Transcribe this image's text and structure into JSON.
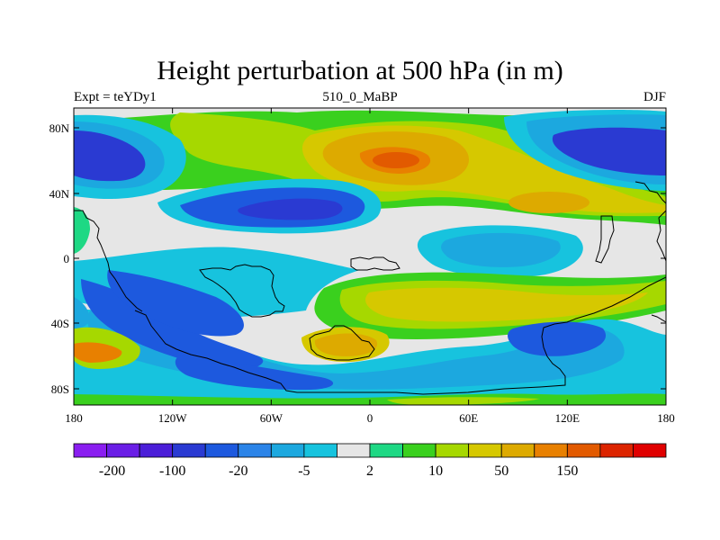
{
  "title": "Height perturbation at 500 hPa (in m)",
  "left_string": "Expt = teYDy1",
  "center_string": "510_0_MaBP",
  "right_string": "DJF",
  "lat_ticks": [
    "80N",
    "40N",
    "0",
    "40S",
    "80S"
  ],
  "lon_ticks": [
    "180",
    "120W",
    "60W",
    "0",
    "60E",
    "120E",
    "180"
  ],
  "colorbar": {
    "colors": [
      "#8a1ef0",
      "#6a1ee6",
      "#4b1ed8",
      "#2a3ad2",
      "#1d59de",
      "#2b84e8",
      "#1ca8df",
      "#17c3de",
      "#e6e6e6",
      "#1ed884",
      "#3ad01e",
      "#a6d800",
      "#d6c800",
      "#ddaa00",
      "#e88000",
      "#e25a00",
      "#dc2400",
      "#e00000"
    ],
    "labels": [
      "-200",
      "-100",
      "-20",
      "-5",
      "2",
      "10",
      "50",
      "150"
    ]
  },
  "palette": {
    "neutral": "#e6e6e6",
    "light_blue": "#17c3de",
    "mid_blue": "#1ca8df",
    "blue": "#1d59de",
    "deep_blue": "#2a3ad2",
    "green": "#1ed884",
    "light_green": "#3ad01e",
    "yellow_green": "#a6d800",
    "olive": "#d6c800",
    "mustard": "#ddaa00",
    "orange": "#e88000",
    "red_orange": "#e25a00"
  }
}
